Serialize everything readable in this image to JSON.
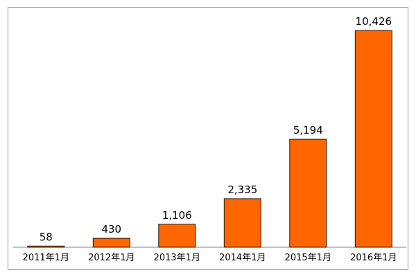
{
  "chart_data": {
    "type": "bar",
    "categories": [
      "2011年1月",
      "2012年1月",
      "2013年1月",
      "2014年1月",
      "2015年1月",
      "2016年1月"
    ],
    "values": [
      58,
      430,
      1106,
      2335,
      5194,
      10426
    ],
    "data_labels": [
      "58",
      "430",
      "1,106",
      "2,335",
      "5,194",
      "10,426"
    ],
    "ylim": [
      0,
      11850
    ],
    "grid": false,
    "legend": "none",
    "bar_color": "#ff6600"
  }
}
